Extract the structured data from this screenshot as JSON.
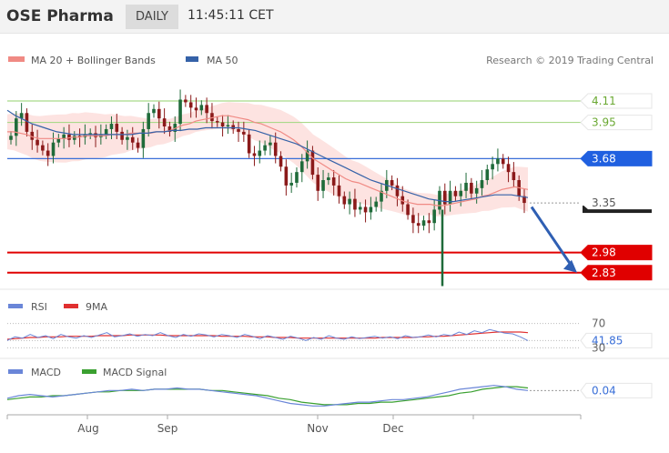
{
  "header": {
    "title": "OSE Pharma",
    "period": "DAILY",
    "time": "11:45:11 CET"
  },
  "colors": {
    "ma20": "#f08a84",
    "ma50": "#3562a8",
    "bollinger_fill": "#fde0de",
    "support": "#e00000",
    "resistance_green": "#7cc24a",
    "pivot_blue": "#2060e0",
    "rsi": "#6a86d8",
    "macd": "#6a86d8",
    "macd_signal": "#3aa030",
    "candle_up": "#1f6b3a",
    "candle_down": "#8b1a1a"
  },
  "chart_data": [
    {
      "type": "line",
      "title": "",
      "legend": [
        "MA 20 + Bollinger Bands",
        "MA 50"
      ],
      "legend_position": "top-left",
      "credit": "Research © 2019 Trading Central",
      "ylim": [
        2.72,
        4.32
      ],
      "xlabels": [
        "Aug",
        "Sep",
        "Nov",
        "Dec"
      ],
      "levels": [
        {
          "label": "4.11",
          "value": 4.11,
          "kind": "resistance"
        },
        {
          "label": "3.95",
          "value": 3.95,
          "kind": "resistance"
        },
        {
          "label": "3.68",
          "value": 3.68,
          "kind": "pivot"
        },
        {
          "label": "3.35",
          "value": 3.35,
          "kind": "last"
        },
        {
          "label": "2.98",
          "value": 2.98,
          "kind": "support"
        },
        {
          "label": "2.83",
          "value": 2.83,
          "kind": "support"
        }
      ],
      "close": [
        3.85,
        3.98,
        4.02,
        3.88,
        3.82,
        3.78,
        3.74,
        3.7,
        3.8,
        3.83,
        3.86,
        3.82,
        3.85,
        3.84,
        3.86,
        3.87,
        3.84,
        3.86,
        3.9,
        3.94,
        3.88,
        3.82,
        3.84,
        3.8,
        3.76,
        3.9,
        4.02,
        4.05,
        3.98,
        3.92,
        3.88,
        3.94,
        4.12,
        4.1,
        4.06,
        4.04,
        4.08,
        4.02,
        3.96,
        3.95,
        3.92,
        3.93,
        3.9,
        3.88,
        3.86,
        3.72,
        3.7,
        3.74,
        3.78,
        3.8,
        3.7,
        3.62,
        3.48,
        3.5,
        3.58,
        3.66,
        3.74,
        3.56,
        3.44,
        3.52,
        3.54,
        3.48,
        3.4,
        3.34,
        3.38,
        3.3,
        3.32,
        3.28,
        3.32,
        3.36,
        3.44,
        3.52,
        3.48,
        3.4,
        3.34,
        3.26,
        3.2,
        3.18,
        3.22,
        3.2,
        3.3,
        3.44,
        3.34,
        3.44,
        3.4,
        3.44,
        3.5,
        3.42,
        3.46,
        3.52,
        3.6,
        3.64,
        3.68,
        3.64,
        3.58,
        3.52,
        3.4,
        3.35
      ],
      "ma20": [
        3.88,
        3.88,
        3.87,
        3.86,
        3.84,
        3.83,
        3.83,
        3.83,
        3.83,
        3.83,
        3.84,
        3.84,
        3.85,
        3.85,
        3.85,
        3.85,
        3.86,
        3.86,
        3.86,
        3.87,
        3.87,
        3.87,
        3.87,
        3.88,
        3.88,
        3.89,
        3.91,
        3.93,
        3.94,
        3.96,
        3.97,
        3.98,
        3.99,
        4.0,
        4.0,
        3.99,
        3.98,
        3.97,
        3.95,
        3.94,
        3.92,
        3.9,
        3.88,
        3.85,
        3.82,
        3.78,
        3.73,
        3.68,
        3.65,
        3.62,
        3.59,
        3.56,
        3.53,
        3.51,
        3.5,
        3.48,
        3.46,
        3.44,
        3.42,
        3.4,
        3.38,
        3.36,
        3.35,
        3.34,
        3.34,
        3.34,
        3.33,
        3.33,
        3.34,
        3.35,
        3.36,
        3.37,
        3.38,
        3.4,
        3.41,
        3.43,
        3.45,
        3.46,
        3.47,
        3.46,
        3.45
      ],
      "ma50": [
        4.04,
        4.0,
        3.97,
        3.94,
        3.92,
        3.9,
        3.88,
        3.87,
        3.86,
        3.86,
        3.86,
        3.86,
        3.86,
        3.86,
        3.86,
        3.86,
        3.87,
        3.87,
        3.88,
        3.88,
        3.89,
        3.89,
        3.9,
        3.9,
        3.91,
        3.91,
        3.91,
        3.91,
        3.91,
        3.9,
        3.89,
        3.87,
        3.85,
        3.83,
        3.81,
        3.79,
        3.76,
        3.73,
        3.7,
        3.67,
        3.64,
        3.61,
        3.58,
        3.55,
        3.52,
        3.5,
        3.48,
        3.46,
        3.44,
        3.42,
        3.4,
        3.38,
        3.37,
        3.36,
        3.36,
        3.37,
        3.38,
        3.39,
        3.4,
        3.41,
        3.41,
        3.41,
        3.4,
        3.39
      ]
    },
    {
      "type": "line",
      "title": "",
      "legend": [
        "RSI",
        "9MA"
      ],
      "legend_position": "top-left",
      "levels": [
        {
          "label": "70",
          "value": 70
        },
        {
          "label": "41.85",
          "value": 41.85,
          "highlight": true
        },
        {
          "label": "30",
          "value": 30
        }
      ],
      "ylim": [
        20,
        80
      ],
      "rsi": [
        42,
        48,
        46,
        52,
        47,
        50,
        45,
        52,
        48,
        46,
        50,
        47,
        51,
        55,
        48,
        50,
        53,
        49,
        52,
        50,
        55,
        50,
        47,
        52,
        49,
        53,
        51,
        48,
        52,
        50,
        47,
        52,
        49,
        45,
        50,
        47,
        44,
        49,
        46,
        42,
        47,
        44,
        50,
        46,
        44,
        48,
        45,
        47,
        49,
        46,
        48,
        45,
        50,
        47,
        48,
        51,
        48,
        52,
        50,
        56,
        52,
        58,
        55,
        60,
        57,
        54,
        53,
        48,
        41.85
      ],
      "ma9": [
        44,
        45,
        46,
        47,
        47,
        48,
        48,
        48,
        49,
        49,
        49,
        49,
        50,
        50,
        50,
        50,
        51,
        51,
        51,
        51,
        51,
        50,
        50,
        50,
        50,
        50,
        50,
        50,
        49,
        49,
        49,
        49,
        48,
        48,
        48,
        47,
        47,
        47,
        46,
        46,
        46,
        46,
        46,
        46,
        46,
        46,
        46,
        46,
        46,
        47,
        47,
        47,
        47,
        47,
        48,
        48,
        49,
        49,
        50,
        51,
        52,
        53,
        54,
        55,
        56,
        56,
        56,
        56,
        55
      ]
    },
    {
      "type": "line",
      "title": "",
      "legend": [
        "MACD",
        "MACD Signal"
      ],
      "legend_position": "top-left",
      "levels": [
        {
          "label": "0.04",
          "value": 0.04,
          "highlight": true
        }
      ],
      "ylim": [
        -0.12,
        0.12
      ],
      "xlabels": [
        "Aug",
        "Sep",
        "Nov",
        "Dec"
      ],
      "macd": [
        -0.02,
        0.0,
        0.01,
        0.0,
        -0.01,
        0.0,
        0.01,
        0.02,
        0.03,
        0.04,
        0.04,
        0.05,
        0.04,
        0.05,
        0.05,
        0.06,
        0.05,
        0.05,
        0.04,
        0.03,
        0.02,
        0.01,
        0.0,
        -0.02,
        -0.04,
        -0.06,
        -0.07,
        -0.08,
        -0.08,
        -0.07,
        -0.06,
        -0.05,
        -0.05,
        -0.04,
        -0.03,
        -0.03,
        -0.02,
        -0.01,
        0.01,
        0.03,
        0.05,
        0.06,
        0.07,
        0.08,
        0.07,
        0.05,
        0.04
      ],
      "signal": [
        -0.03,
        -0.02,
        -0.01,
        -0.01,
        0.0,
        0.0,
        0.01,
        0.02,
        0.03,
        0.03,
        0.04,
        0.04,
        0.04,
        0.05,
        0.05,
        0.05,
        0.05,
        0.05,
        0.04,
        0.04,
        0.03,
        0.02,
        0.01,
        0.0,
        -0.02,
        -0.03,
        -0.05,
        -0.06,
        -0.07,
        -0.07,
        -0.07,
        -0.06,
        -0.06,
        -0.05,
        -0.05,
        -0.04,
        -0.03,
        -0.02,
        -0.01,
        0.0,
        0.02,
        0.03,
        0.05,
        0.06,
        0.07,
        0.07,
        0.06
      ]
    }
  ]
}
